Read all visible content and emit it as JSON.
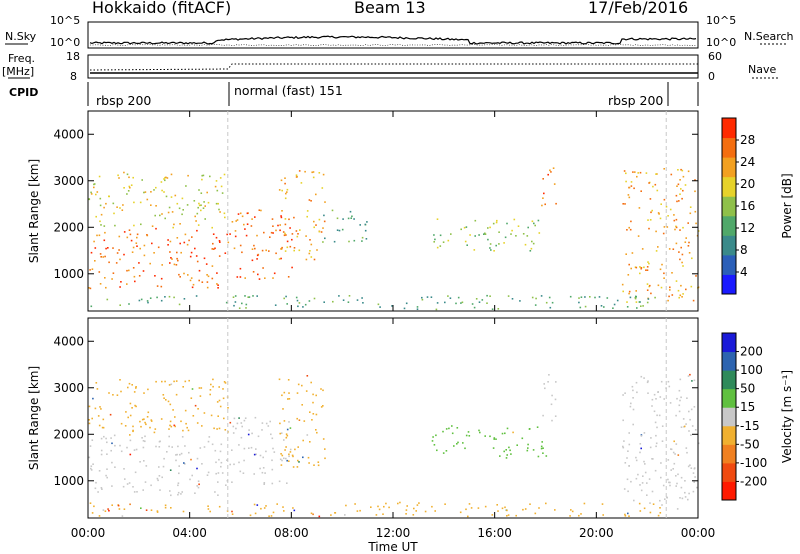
{
  "header": {
    "station": "Hokkaido (fitACF)",
    "beam": "Beam 13",
    "date": "17/Feb/2016"
  },
  "top_panels": {
    "nsky_label": "N.Sky",
    "nsearch_label": "N.Search",
    "freq_label_1": "Freq.",
    "freq_label_2": "[MHz]",
    "nave_label": "Nave",
    "cpid_label": "CPID",
    "noise_ticks_left": [
      "10^5",
      "10^0"
    ],
    "noise_ticks_right": [
      "10^5",
      "10^0"
    ],
    "freq_ticks": [
      "18",
      "8"
    ],
    "nave_ticks": [
      "60",
      "0"
    ],
    "cpid_segments": [
      {
        "label": "rbsp 200",
        "start_h": 0,
        "end_h": 5.5
      },
      {
        "label": "normal (fast) 151",
        "start_h": 5.5,
        "end_h": 22.75
      },
      {
        "label": "rbsp 200",
        "start_h": 22.75,
        "end_h": 24
      }
    ]
  },
  "chart_data": [
    {
      "type": "heatmap",
      "name": "power",
      "xlabel": "Time UT",
      "ylabel": "Slant Range [km]",
      "xlim": [
        0,
        24
      ],
      "ylim": [
        200,
        4500
      ],
      "x_ticks": [
        "00:00",
        "04:00",
        "08:00",
        "12:00",
        "16:00",
        "20:00",
        "00:00"
      ],
      "y_ticks": [
        1000,
        2000,
        3000,
        4000
      ],
      "colorbar": {
        "label": "Power [dB]",
        "ticks": [
          4,
          8,
          12,
          16,
          20,
          24,
          28
        ],
        "range": [
          0,
          32
        ],
        "colors": [
          "#1a1aff",
          "#2b5fb8",
          "#3a8a8a",
          "#50a86a",
          "#8fc04a",
          "#e6d22a",
          "#f2a020",
          "#f46e10",
          "#ff2a00"
        ]
      },
      "features": [
        {
          "t0": 0.0,
          "t1": 5.5,
          "r0": 700,
          "r1": 2000,
          "power": 28
        },
        {
          "t0": 0.0,
          "t1": 5.5,
          "r0": 2000,
          "r1": 3200,
          "power": 20
        },
        {
          "t0": 5.5,
          "t1": 8.0,
          "r0": 900,
          "r1": 2400,
          "power": 26
        },
        {
          "t0": 7.5,
          "t1": 9.3,
          "r0": 1300,
          "r1": 3300,
          "power": 24
        },
        {
          "t0": 9.0,
          "t1": 11.0,
          "r0": 1700,
          "r1": 2400,
          "power": 12
        },
        {
          "t0": 13.5,
          "t1": 18.0,
          "r0": 1500,
          "r1": 2200,
          "power": 14
        },
        {
          "t0": 17.8,
          "t1": 18.4,
          "r0": 2300,
          "r1": 3300,
          "power": 26
        },
        {
          "t0": 21.0,
          "t1": 24.0,
          "r0": 400,
          "r1": 3300,
          "power": 24
        },
        {
          "t0": 0.0,
          "t1": 22.5,
          "r0": 250,
          "r1": 550,
          "power": 10
        }
      ]
    },
    {
      "type": "heatmap",
      "name": "velocity",
      "xlabel": "Time UT",
      "ylabel": "Slant Range [km]",
      "xlim": [
        0,
        24
      ],
      "ylim": [
        200,
        4500
      ],
      "x_ticks": [
        "00:00",
        "04:00",
        "08:00",
        "12:00",
        "16:00",
        "20:00",
        "00:00"
      ],
      "y_ticks": [
        1000,
        2000,
        3000,
        4000
      ],
      "colorbar": {
        "label": "Velocity [m s⁻¹]",
        "ticks": [
          200,
          100,
          50,
          15,
          -15,
          -50,
          -100,
          -200
        ],
        "colors": [
          "#1a1ad8",
          "#2d64b0",
          "#2f8a5a",
          "#60c040",
          "#c8c8c8",
          "#f0b030",
          "#f08020",
          "#f04a10",
          "#ff1a00"
        ]
      },
      "features": [
        {
          "t0": 0.0,
          "t1": 5.5,
          "r0": 700,
          "r1": 2000,
          "velocity": 0
        },
        {
          "t0": 0.0,
          "t1": 5.5,
          "r0": 2000,
          "r1": 3200,
          "velocity": -40
        },
        {
          "t0": 5.5,
          "t1": 8.0,
          "r0": 900,
          "r1": 2400,
          "velocity": -30
        },
        {
          "t0": 7.5,
          "t1": 9.3,
          "r0": 1300,
          "r1": 3300,
          "velocity": -60
        },
        {
          "t0": 13.5,
          "t1": 18.0,
          "r0": 1500,
          "r1": 2200,
          "velocity": 40
        },
        {
          "t0": 17.8,
          "t1": 18.4,
          "r0": 2300,
          "r1": 3300,
          "velocity": 0
        },
        {
          "t0": 21.0,
          "t1": 24.0,
          "r0": 400,
          "r1": 3300,
          "velocity": 0
        },
        {
          "t0": 0.0,
          "t1": 22.5,
          "r0": 250,
          "r1": 550,
          "velocity": -40
        }
      ]
    }
  ]
}
